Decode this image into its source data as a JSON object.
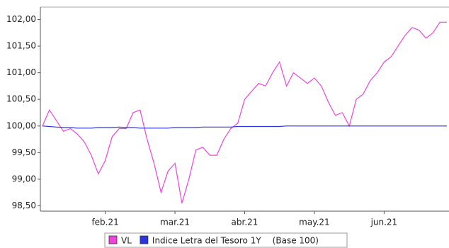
{
  "chart_data": {
    "type": "line",
    "categories": [
      null,
      null,
      null,
      null,
      null,
      null,
      null,
      null,
      null,
      "feb.21",
      null,
      null,
      null,
      null,
      null,
      null,
      null,
      null,
      null,
      "mar.21",
      null,
      null,
      null,
      null,
      null,
      null,
      null,
      null,
      null,
      "abr.21",
      null,
      null,
      null,
      null,
      null,
      null,
      null,
      null,
      null,
      "may.21",
      null,
      null,
      null,
      null,
      null,
      null,
      null,
      null,
      null,
      "jun.21",
      null,
      null,
      null,
      null,
      null,
      null,
      null,
      null,
      null
    ],
    "series": [
      {
        "name": "VL",
        "color": "#ee44dd",
        "values": [
          100.0,
          100.3,
          100.1,
          99.9,
          99.95,
          99.85,
          99.7,
          99.45,
          99.1,
          99.35,
          99.8,
          99.95,
          99.95,
          100.25,
          100.3,
          99.75,
          99.3,
          98.75,
          99.15,
          99.3,
          98.55,
          99.0,
          99.55,
          99.6,
          99.45,
          99.45,
          99.75,
          99.95,
          100.05,
          100.5,
          100.65,
          100.8,
          100.75,
          101.0,
          101.2,
          100.75,
          101.0,
          100.9,
          100.8,
          100.9,
          100.75,
          100.45,
          100.2,
          100.25,
          100.0,
          100.5,
          100.6,
          100.85,
          101.0,
          101.2,
          101.3,
          101.5,
          101.7,
          101.85,
          101.8,
          101.65,
          101.75,
          101.95,
          101.95
        ]
      },
      {
        "name": "Indice Letra del Tesoro 1Y",
        "color": "#2a35e0",
        "values": [
          100.0,
          99.99,
          99.98,
          99.97,
          99.97,
          99.96,
          99.96,
          99.96,
          99.97,
          99.97,
          99.97,
          99.98,
          99.97,
          99.97,
          99.96,
          99.96,
          99.96,
          99.96,
          99.96,
          99.97,
          99.97,
          99.97,
          99.97,
          99.98,
          99.98,
          99.98,
          99.98,
          99.98,
          99.99,
          99.99,
          99.99,
          99.99,
          99.99,
          99.99,
          99.99,
          100.0,
          100.0,
          100.0,
          100.0,
          100.0,
          100.0,
          100.0,
          100.0,
          100.0,
          100.0,
          100.0,
          100.0,
          100.0,
          100.0,
          100.0,
          100.0,
          100.0,
          100.0,
          100.0,
          100.0,
          100.0,
          100.0,
          100.0,
          100.0
        ]
      }
    ],
    "legend_note": "(Base 100)",
    "ylim": [
      98.4,
      102.1
    ],
    "yticks": [
      {
        "value": 98.5,
        "label": "98,50"
      },
      {
        "value": 99,
        "label": "99,00"
      },
      {
        "value": 99.5,
        "label": "99,50"
      },
      {
        "value": 100,
        "label": "100,00"
      },
      {
        "value": 100.5,
        "label": "100,50"
      },
      {
        "value": 101,
        "label": "101,00"
      },
      {
        "value": 101.5,
        "label": "101,50"
      },
      {
        "value": 102,
        "label": "102,00"
      }
    ],
    "grid": false
  }
}
